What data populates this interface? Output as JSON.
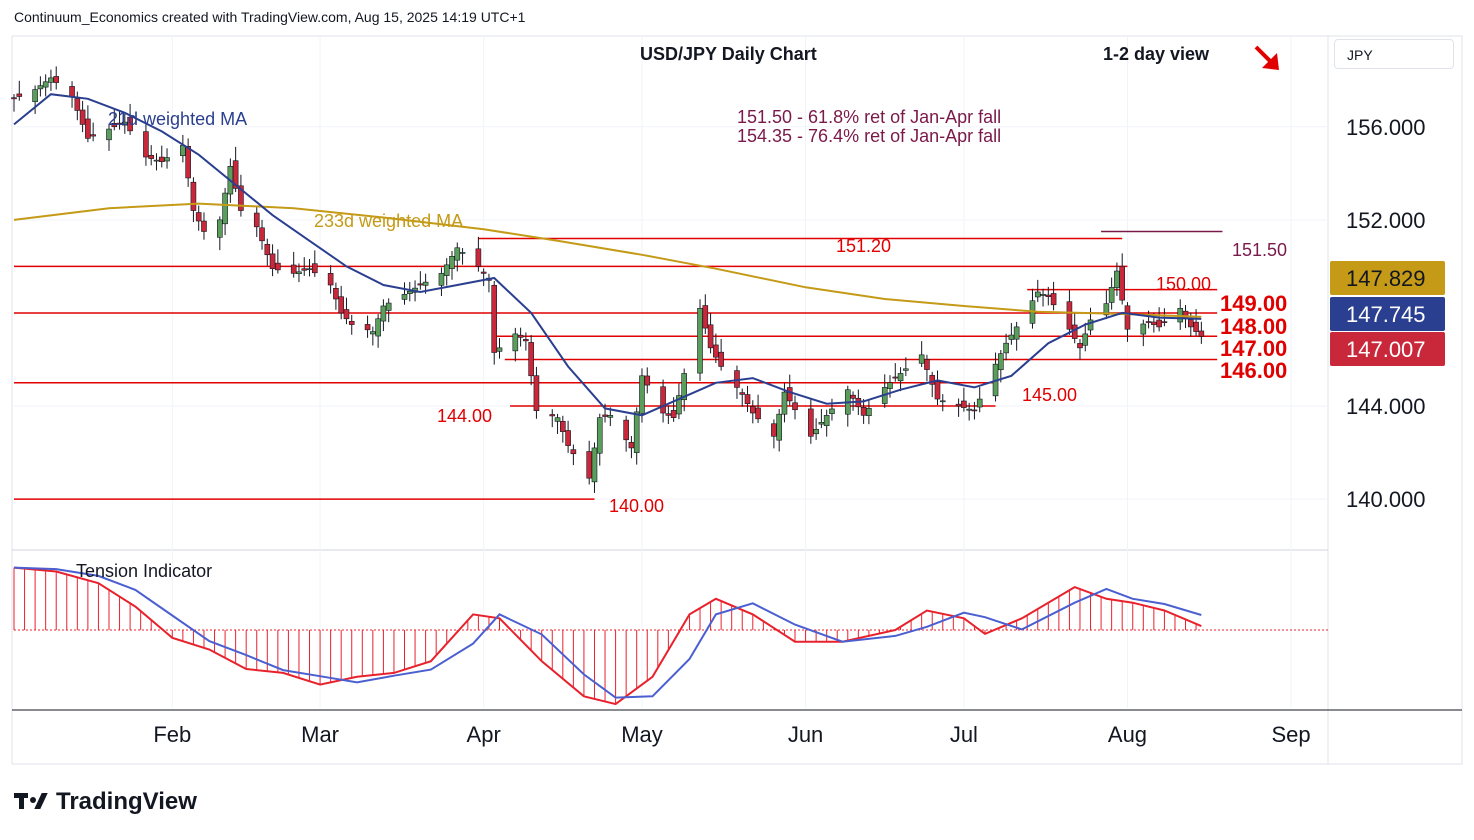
{
  "header": {
    "credit": "Continuum_Economics created with TradingView.com, Aug 15, 2025 14:19 UTC+1"
  },
  "symbol_box": "JPY",
  "brand": {
    "name": "TradingView"
  },
  "colors": {
    "candle_up": "#5b9e5b",
    "candle_down": "#c9283a",
    "ma21": "#2a3f8f",
    "ma233": "#c49a16",
    "level": "#e00000",
    "annotation": "#7a1a4a",
    "tension": "#e8222d"
  },
  "icons": {
    "view_arrow": "arrow-down-right-icon"
  },
  "chart_data": {
    "type": "candlestick",
    "title": "USD/JPY Daily Chart",
    "view_label": "1-2 day view",
    "ylim": [
      137.9,
      159.9
    ],
    "grid": true,
    "y_ticks": [
      {
        "value": 156,
        "label": "156.000"
      },
      {
        "value": 152,
        "label": "152.000"
      },
      {
        "value": 144,
        "label": "144.000"
      },
      {
        "value": 140,
        "label": "140.000"
      }
    ],
    "x_ticks": [
      {
        "date": "2025-02-01",
        "label": "Feb"
      },
      {
        "date": "2025-03-01",
        "label": "Mar"
      },
      {
        "date": "2025-04-01",
        "label": "Apr"
      },
      {
        "date": "2025-05-01",
        "label": "May"
      },
      {
        "date": "2025-06-01",
        "label": "Jun"
      },
      {
        "date": "2025-07-01",
        "label": "Jul"
      },
      {
        "date": "2025-08-01",
        "label": "Aug"
      },
      {
        "date": "2025-09-01",
        "label": "Sep"
      }
    ],
    "x_range": [
      "2025-01-02",
      "2025-09-08"
    ],
    "close_path": [
      [
        "2025-01-02",
        157.2
      ],
      [
        "2025-01-06",
        157.6
      ],
      [
        "2025-01-09",
        158.1
      ],
      [
        "2025-01-13",
        157.3
      ],
      [
        "2025-01-16",
        155.5
      ],
      [
        "2025-01-20",
        155.9
      ],
      [
        "2025-01-23",
        156.2
      ],
      [
        "2025-01-27",
        154.7
      ],
      [
        "2025-01-30",
        154.5
      ],
      [
        "2025-02-03",
        155.2
      ],
      [
        "2025-02-05",
        152.4
      ],
      [
        "2025-02-07",
        151.5
      ],
      [
        "2025-02-10",
        152.0
      ],
      [
        "2025-02-12",
        154.3
      ],
      [
        "2025-02-14",
        152.4
      ],
      [
        "2025-02-17",
        151.7
      ],
      [
        "2025-02-20",
        149.9
      ],
      [
        "2025-02-24",
        149.7
      ],
      [
        "2025-02-27",
        149.9
      ],
      [
        "2025-03-03",
        149.2
      ],
      [
        "2025-03-05",
        148.0
      ],
      [
        "2025-03-07",
        147.5
      ],
      [
        "2025-03-11",
        147.2
      ],
      [
        "2025-03-13",
        148.3
      ],
      [
        "2025-03-17",
        148.8
      ],
      [
        "2025-03-20",
        149.2
      ],
      [
        "2025-03-24",
        149.7
      ],
      [
        "2025-03-27",
        150.8
      ],
      [
        "2025-03-31",
        150.0
      ],
      [
        "2025-04-02",
        149.4
      ],
      [
        "2025-04-03",
        146.3
      ],
      [
        "2025-04-07",
        147.1
      ],
      [
        "2025-04-09",
        146.8
      ],
      [
        "2025-04-11",
        143.8
      ],
      [
        "2025-04-15",
        143.5
      ],
      [
        "2025-04-17",
        142.3
      ],
      [
        "2025-04-21",
        140.9
      ],
      [
        "2025-04-23",
        143.5
      ],
      [
        "2025-04-25",
        143.6
      ],
      [
        "2025-04-29",
        142.2
      ],
      [
        "2025-05-01",
        145.3
      ],
      [
        "2025-05-05",
        143.7
      ],
      [
        "2025-05-07",
        143.5
      ],
      [
        "2025-05-09",
        145.4
      ],
      [
        "2025-05-12",
        148.2
      ],
      [
        "2025-05-14",
        146.5
      ],
      [
        "2025-05-16",
        145.7
      ],
      [
        "2025-05-20",
        144.5
      ],
      [
        "2025-05-22",
        143.7
      ],
      [
        "2025-05-26",
        142.7
      ],
      [
        "2025-05-28",
        144.6
      ],
      [
        "2025-06-02",
        142.7
      ],
      [
        "2025-06-05",
        143.6
      ],
      [
        "2025-06-09",
        144.7
      ],
      [
        "2025-06-12",
        143.6
      ],
      [
        "2025-06-16",
        144.8
      ],
      [
        "2025-06-19",
        145.4
      ],
      [
        "2025-06-23",
        146.2
      ],
      [
        "2025-06-26",
        144.3
      ],
      [
        "2025-06-30",
        144.0
      ],
      [
        "2025-07-03",
        143.8
      ],
      [
        "2025-07-07",
        145.8
      ],
      [
        "2025-07-09",
        146.7
      ],
      [
        "2025-07-11",
        147.4
      ],
      [
        "2025-07-15",
        148.9
      ],
      [
        "2025-07-17",
        148.7
      ],
      [
        "2025-07-21",
        147.3
      ],
      [
        "2025-07-23",
        146.5
      ],
      [
        "2025-07-25",
        147.7
      ],
      [
        "2025-07-28",
        148.4
      ],
      [
        "2025-07-30",
        149.8
      ],
      [
        "2025-08-01",
        147.3
      ],
      [
        "2025-08-05",
        147.6
      ],
      [
        "2025-08-07",
        147.4
      ],
      [
        "2025-08-11",
        148.2
      ],
      [
        "2025-08-13",
        147.4
      ],
      [
        "2025-08-15",
        147.0
      ]
    ],
    "ma21_path": [
      [
        "2025-01-02",
        156.1
      ],
      [
        "2025-01-09",
        157.4
      ],
      [
        "2025-01-16",
        157.2
      ],
      [
        "2025-01-23",
        156.6
      ],
      [
        "2025-01-30",
        155.8
      ],
      [
        "2025-02-06",
        154.8
      ],
      [
        "2025-02-13",
        153.5
      ],
      [
        "2025-02-20",
        152.2
      ],
      [
        "2025-02-27",
        151.1
      ],
      [
        "2025-03-06",
        150.0
      ],
      [
        "2025-03-13",
        149.2
      ],
      [
        "2025-03-20",
        148.9
      ],
      [
        "2025-03-27",
        149.2
      ],
      [
        "2025-04-03",
        149.5
      ],
      [
        "2025-04-10",
        148.0
      ],
      [
        "2025-04-17",
        145.7
      ],
      [
        "2025-04-24",
        143.9
      ],
      [
        "2025-05-01",
        143.6
      ],
      [
        "2025-05-08",
        144.3
      ],
      [
        "2025-05-15",
        145.0
      ],
      [
        "2025-05-22",
        145.2
      ],
      [
        "2025-05-29",
        144.6
      ],
      [
        "2025-06-05",
        144.1
      ],
      [
        "2025-06-12",
        144.2
      ],
      [
        "2025-06-19",
        144.7
      ],
      [
        "2025-06-26",
        145.1
      ],
      [
        "2025-07-03",
        144.8
      ],
      [
        "2025-07-10",
        145.3
      ],
      [
        "2025-07-17",
        146.7
      ],
      [
        "2025-07-24",
        147.5
      ],
      [
        "2025-07-31",
        148.0
      ],
      [
        "2025-08-07",
        147.8
      ],
      [
        "2025-08-15",
        147.745
      ]
    ],
    "ma233_path": [
      [
        "2025-01-02",
        152.0
      ],
      [
        "2025-01-20",
        152.5
      ],
      [
        "2025-02-06",
        152.7
      ],
      [
        "2025-02-24",
        152.5
      ],
      [
        "2025-03-13",
        152.1
      ],
      [
        "2025-04-01",
        151.6
      ],
      [
        "2025-04-15",
        151.1
      ],
      [
        "2025-05-01",
        150.5
      ],
      [
        "2025-05-15",
        149.9
      ],
      [
        "2025-06-01",
        149.1
      ],
      [
        "2025-06-16",
        148.6
      ],
      [
        "2025-07-01",
        148.3
      ],
      [
        "2025-07-15",
        148.05
      ],
      [
        "2025-08-01",
        147.95
      ],
      [
        "2025-08-15",
        147.829
      ]
    ],
    "support_resistance": [
      {
        "value": 151.2,
        "label": "151.20",
        "from": "2025-03-31",
        "to": "2025-07-31"
      },
      {
        "value": 151.5,
        "label": "151.50",
        "from": "2025-07-27",
        "to": "2025-08-19"
      },
      {
        "value": 150.0,
        "label": "150.00",
        "from": "2025-01-02",
        "to": "2025-08-01"
      },
      {
        "value": 149.0,
        "label": "149.00",
        "from": "2025-07-13",
        "to": "2025-08-18"
      },
      {
        "value": 148.0,
        "label": "148.00",
        "from": "2025-01-02",
        "to": "2025-08-18"
      },
      {
        "value": 147.0,
        "label": "147.00",
        "from": "2025-04-03",
        "to": "2025-08-18"
      },
      {
        "value": 146.0,
        "label": "146.00",
        "from": "2025-04-05",
        "to": "2025-08-18"
      },
      {
        "value": 145.0,
        "label": "145.00",
        "from": "2025-01-02",
        "to": "2025-07-07"
      },
      {
        "value": 144.0,
        "label": "144.00",
        "from": "2025-04-06",
        "to": "2025-07-07"
      },
      {
        "value": 140.0,
        "label": "140.00",
        "from": "2025-01-02",
        "to": "2025-04-22"
      }
    ],
    "ma_labels": {
      "ma21": "21d weighted MA",
      "ma233": "233d weighted MA"
    },
    "annotations": [
      "151.50 - 61.8% ret of Jan-Apr fall",
      "154.35 - 76.4% ret of Jan-Apr fall"
    ],
    "price_tags": [
      {
        "value": 147.829,
        "label": "147.829",
        "color": "#c49a16"
      },
      {
        "value": 147.745,
        "label": "147.745",
        "color": "#2a3f8f"
      },
      {
        "value": 147.007,
        "label": "147.007",
        "color": "#c9283a"
      }
    ],
    "tension": {
      "title": "Tension Indicator",
      "ylim": [
        -1.0,
        1.0
      ],
      "path": [
        [
          "2025-01-02",
          0.8
        ],
        [
          "2025-01-10",
          0.75
        ],
        [
          "2025-01-18",
          0.6
        ],
        [
          "2025-01-25",
          0.3
        ],
        [
          "2025-02-01",
          -0.1
        ],
        [
          "2025-02-08",
          -0.25
        ],
        [
          "2025-02-15",
          -0.5
        ],
        [
          "2025-02-22",
          -0.55
        ],
        [
          "2025-03-01",
          -0.7
        ],
        [
          "2025-03-08",
          -0.6
        ],
        [
          "2025-03-15",
          -0.55
        ],
        [
          "2025-03-22",
          -0.4
        ],
        [
          "2025-03-30",
          0.2
        ],
        [
          "2025-04-04",
          0.15
        ],
        [
          "2025-04-12",
          -0.4
        ],
        [
          "2025-04-20",
          -0.85
        ],
        [
          "2025-04-26",
          -0.95
        ],
        [
          "2025-05-03",
          -0.6
        ],
        [
          "2025-05-10",
          0.2
        ],
        [
          "2025-05-15",
          0.4
        ],
        [
          "2025-05-22",
          0.2
        ],
        [
          "2025-05-30",
          -0.15
        ],
        [
          "2025-06-08",
          -0.15
        ],
        [
          "2025-06-18",
          0.0
        ],
        [
          "2025-06-24",
          0.25
        ],
        [
          "2025-07-01",
          0.15
        ],
        [
          "2025-07-05",
          -0.05
        ],
        [
          "2025-07-12",
          0.15
        ],
        [
          "2025-07-22",
          0.55
        ],
        [
          "2025-07-28",
          0.4
        ],
        [
          "2025-08-02",
          0.35
        ],
        [
          "2025-08-08",
          0.25
        ],
        [
          "2025-08-15",
          0.05
        ]
      ]
    }
  }
}
